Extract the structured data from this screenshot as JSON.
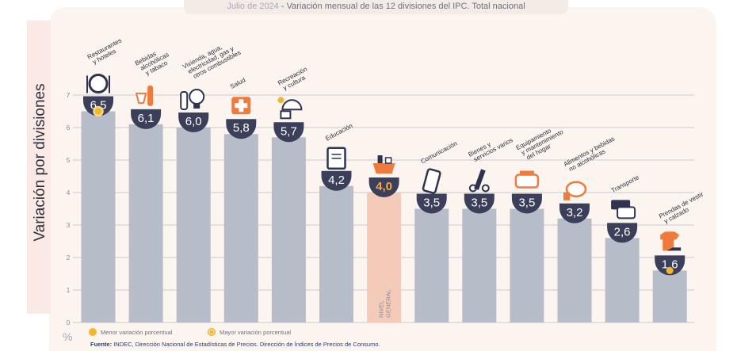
{
  "header": {
    "title_date": "Julio de 2024",
    "title_sep": " - ",
    "title_main": "Variación mensual de las 12 divisiones del IPC. Total nacional"
  },
  "axis": {
    "ylabel": "Variación por divisiones",
    "unit": "%"
  },
  "legend": {
    "min_label": "Menor variación porcentual",
    "max_label": "Mayor variación porcentual"
  },
  "source": {
    "label": "Fuente:",
    "text": "INDEC, Dirección Nacional de Estadísticas de Precios. Dirección de Índices de Precios de Consumo."
  },
  "colors": {
    "bar": "#b7bcc9",
    "bar_general": "#f4cbb8",
    "badge": "#3c3f5a",
    "badge_text_general": "#f4a64a",
    "dot": "#f3b62c",
    "grid": "#b9bcc8",
    "category_text": "#2e2e3a"
  },
  "chart_data": {
    "type": "bar",
    "ylim": [
      0,
      7
    ],
    "yticks": [
      "0",
      "1",
      "2",
      "3",
      "4",
      "5",
      "6",
      "7"
    ],
    "grid": true,
    "categories": [
      "Restaurantes y hoteles",
      "Bebidas alcohólicas y tabaco",
      "Vivienda, agua, electricidad, gas y otros combustibles",
      "Salud",
      "Recreación y cultura",
      "Educación",
      "Nivel general",
      "Comunicación",
      "Bienes y servicios varios",
      "Equipamiento y mantenimiento del hogar",
      "Alimentos y bebidas no alcohólicas",
      "Transporte",
      "Prendas de vestir y calzado"
    ],
    "values": [
      6.5,
      6.1,
      6.0,
      5.8,
      5.7,
      4.2,
      4.0,
      3.5,
      3.5,
      3.5,
      3.2,
      2.6,
      1.6
    ],
    "value_labels": [
      "6,5",
      "6,1",
      "6,0",
      "5,8",
      "5,7",
      "4,2",
      "4,0",
      "3,5",
      "3,5",
      "3,5",
      "3,2",
      "2,6",
      "1,6"
    ],
    "category_label_lines": [
      [
        "Restaurantes",
        "y hoteles"
      ],
      [
        "Bebidas",
        "alcohólicas",
        "y tabaco"
      ],
      [
        "Vivienda, agua,",
        "electricidad, gas y",
        "otros combustibles"
      ],
      [
        "Salud"
      ],
      [
        "Recreación",
        "y cultura"
      ],
      [
        "Educación"
      ],
      [
        "NIVEL",
        "GENERAL"
      ],
      [
        "Comunicación"
      ],
      [
        "Bienes y",
        "servicios varios"
      ],
      [
        "Equipamiento",
        "y mantenimiento",
        "del hogar"
      ],
      [
        "Alimentos y bebidas",
        "no alcohólicas"
      ],
      [
        "Transporte"
      ],
      [
        "Prendas de vestir",
        "y calzado"
      ]
    ],
    "general_index": 6,
    "max_index": 0,
    "min_index": 12,
    "icons": [
      "plate-cutlery-icon",
      "bottle-glass-icon",
      "lightbulb-house-icon",
      "first-aid-kit-icon",
      "beach-umbrella-icon",
      "notebook-icon",
      "shopping-basket-icon",
      "smartphone-icon",
      "comb-scissors-icon",
      "toaster-icon",
      "chicken-icon",
      "bus-card-icon",
      "tshirt-shoe-icon"
    ]
  }
}
